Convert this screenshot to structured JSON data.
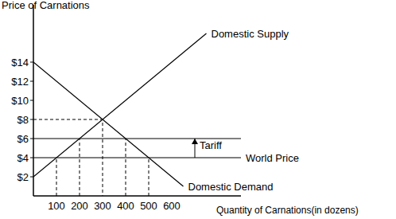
{
  "chart_data": {
    "type": "line",
    "y_label": "Price of Carnations",
    "x_label": "Quantity of Carnations(in dozens)",
    "xlim": [
      0,
      900
    ],
    "xticks": [
      100,
      200,
      300,
      400,
      500,
      600
    ],
    "ylim": [
      0,
      20
    ],
    "yticks": [
      {
        "value": 2,
        "label": "$2"
      },
      {
        "value": 4,
        "label": "$4"
      },
      {
        "value": 6,
        "label": "$6"
      },
      {
        "value": 8,
        "label": "$8"
      },
      {
        "value": 10,
        "label": "$10"
      },
      {
        "value": 12,
        "label": "$12"
      },
      {
        "value": 14,
        "label": "$14"
      }
    ],
    "series": [
      {
        "name": "Domestic Supply",
        "color": "#000000",
        "x": [
          0,
          750
        ],
        "values": [
          2,
          17
        ]
      },
      {
        "name": "Domestic Demand",
        "color": "#000000",
        "x": [
          0,
          650
        ],
        "values": [
          14,
          1
        ]
      },
      {
        "name": "World Price",
        "color": "#000000",
        "x": [
          0,
          900
        ],
        "values": [
          4,
          4
        ]
      },
      {
        "color": "#000000",
        "x": [
          0,
          900
        ],
        "values": [
          6,
          6
        ]
      },
      {
        "color": "#000000",
        "line_style": "dashed",
        "x": [
          0,
          300,
          300
        ],
        "values": [
          8,
          8,
          0
        ]
      },
      {
        "color": "#000000",
        "line_style": "dashed",
        "x": [
          100,
          100
        ],
        "values": [
          0,
          4
        ]
      },
      {
        "color": "#000000",
        "line_style": "dashed",
        "x": [
          200,
          200
        ],
        "values": [
          0,
          6
        ]
      },
      {
        "color": "#000000",
        "line_style": "dashed",
        "x": [
          400,
          400
        ],
        "values": [
          0,
          6
        ]
      },
      {
        "color": "#000000",
        "line_style": "dashed",
        "x": [
          500,
          500
        ],
        "values": [
          0,
          4
        ]
      }
    ],
    "annotations": [
      {
        "text": "Tariff",
        "x": 700,
        "from": 4,
        "to": 6
      }
    ]
  }
}
